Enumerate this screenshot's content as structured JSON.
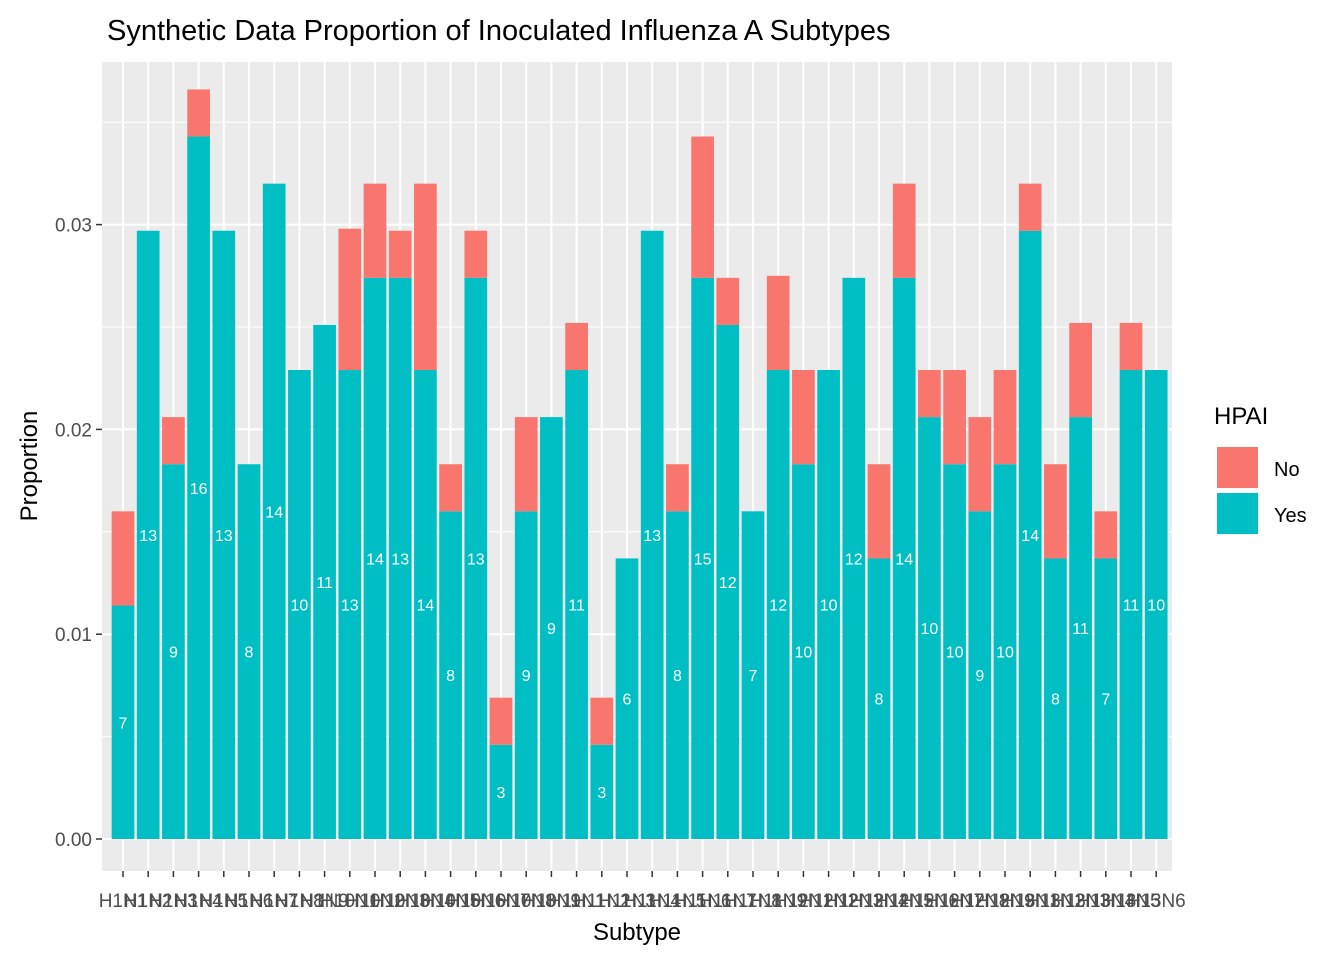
{
  "chart_data": {
    "type": "bar",
    "stacked": true,
    "title": "Synthetic Data Proportion of Inoculated Influenza A Subtypes",
    "xlabel": "Subtype",
    "ylabel": "Proportion",
    "ylim": [
      0,
      0.0383
    ],
    "y_ticks": [
      0.0,
      0.01,
      0.02,
      0.03
    ],
    "y_tick_labels": [
      "0.00",
      "0.01",
      "0.02",
      "0.03"
    ],
    "grid": true,
    "legend": {
      "title": "HPAI",
      "position": "right",
      "entries": [
        {
          "label": "No",
          "color": "#F8766D"
        },
        {
          "label": "Yes",
          "color": "#00BFC4"
        }
      ]
    },
    "categories": [
      "H1N1",
      "H1N2",
      "H1N3",
      "H1N4",
      "H1N5",
      "H1N6",
      "H1N7",
      "H1N8",
      "H1N9",
      "H10N1",
      "H10N2",
      "H10N3",
      "H10N4",
      "H10N5",
      "H10N6",
      "H10N7",
      "H10N8",
      "H10N9",
      "H11N1",
      "H11N2",
      "H11N3",
      "H11N4",
      "H11N5",
      "H11N6",
      "H11N7",
      "H11N8",
      "H11N9",
      "H12N1",
      "H12N2",
      "H12N3",
      "H12N4",
      "H12N5",
      "H12N6",
      "H12N7",
      "H12N8",
      "H12N9",
      "H13N1",
      "H13N2",
      "H13N3",
      "H13N4",
      "H13N5",
      "H13N6"
    ],
    "series": [
      {
        "name": "Yes",
        "color": "#00BFC4",
        "values": [
          0.0114,
          0.0297,
          0.0183,
          0.0343,
          0.0297,
          0.0183,
          0.032,
          0.0229,
          0.0251,
          0.0229,
          0.0274,
          0.0274,
          0.0229,
          0.016,
          0.0274,
          0.0046,
          0.016,
          0.0206,
          0.0229,
          0.0046,
          0.0137,
          0.0297,
          0.016,
          0.0274,
          0.0251,
          0.016,
          0.0229,
          0.0183,
          0.0229,
          0.0274,
          0.0137,
          0.0274,
          0.0206,
          0.0183,
          0.016,
          0.0183,
          0.0297,
          0.0137,
          0.0206,
          0.0137,
          0.0229,
          0.0229
        ],
        "counts": [
          7,
          13,
          9,
          16,
          13,
          8,
          14,
          10,
          11,
          13,
          14,
          13,
          14,
          8,
          13,
          3,
          9,
          9,
          11,
          3,
          6,
          13,
          8,
          15,
          12,
          7,
          12,
          10,
          10,
          12,
          8,
          14,
          10,
          10,
          9,
          10,
          14,
          8,
          11,
          7,
          11,
          10
        ]
      },
      {
        "name": "No",
        "color": "#F8766D",
        "values": [
          0.0046,
          0,
          0.0023,
          0.0023,
          0,
          0,
          0,
          0,
          0,
          0.0069,
          0.0046,
          0.0023,
          0.0091,
          0.0023,
          0.0023,
          0.0023,
          0.0046,
          0,
          0.0023,
          0.0023,
          0,
          0,
          0.0023,
          0.0069,
          0.0023,
          0,
          0.0046,
          0.0046,
          0,
          0,
          0.0046,
          0.0046,
          0.0023,
          0.0046,
          0.0046,
          0.0046,
          0.0023,
          0.0046,
          0.0046,
          0.0023,
          0.0023,
          0
        ]
      }
    ]
  }
}
